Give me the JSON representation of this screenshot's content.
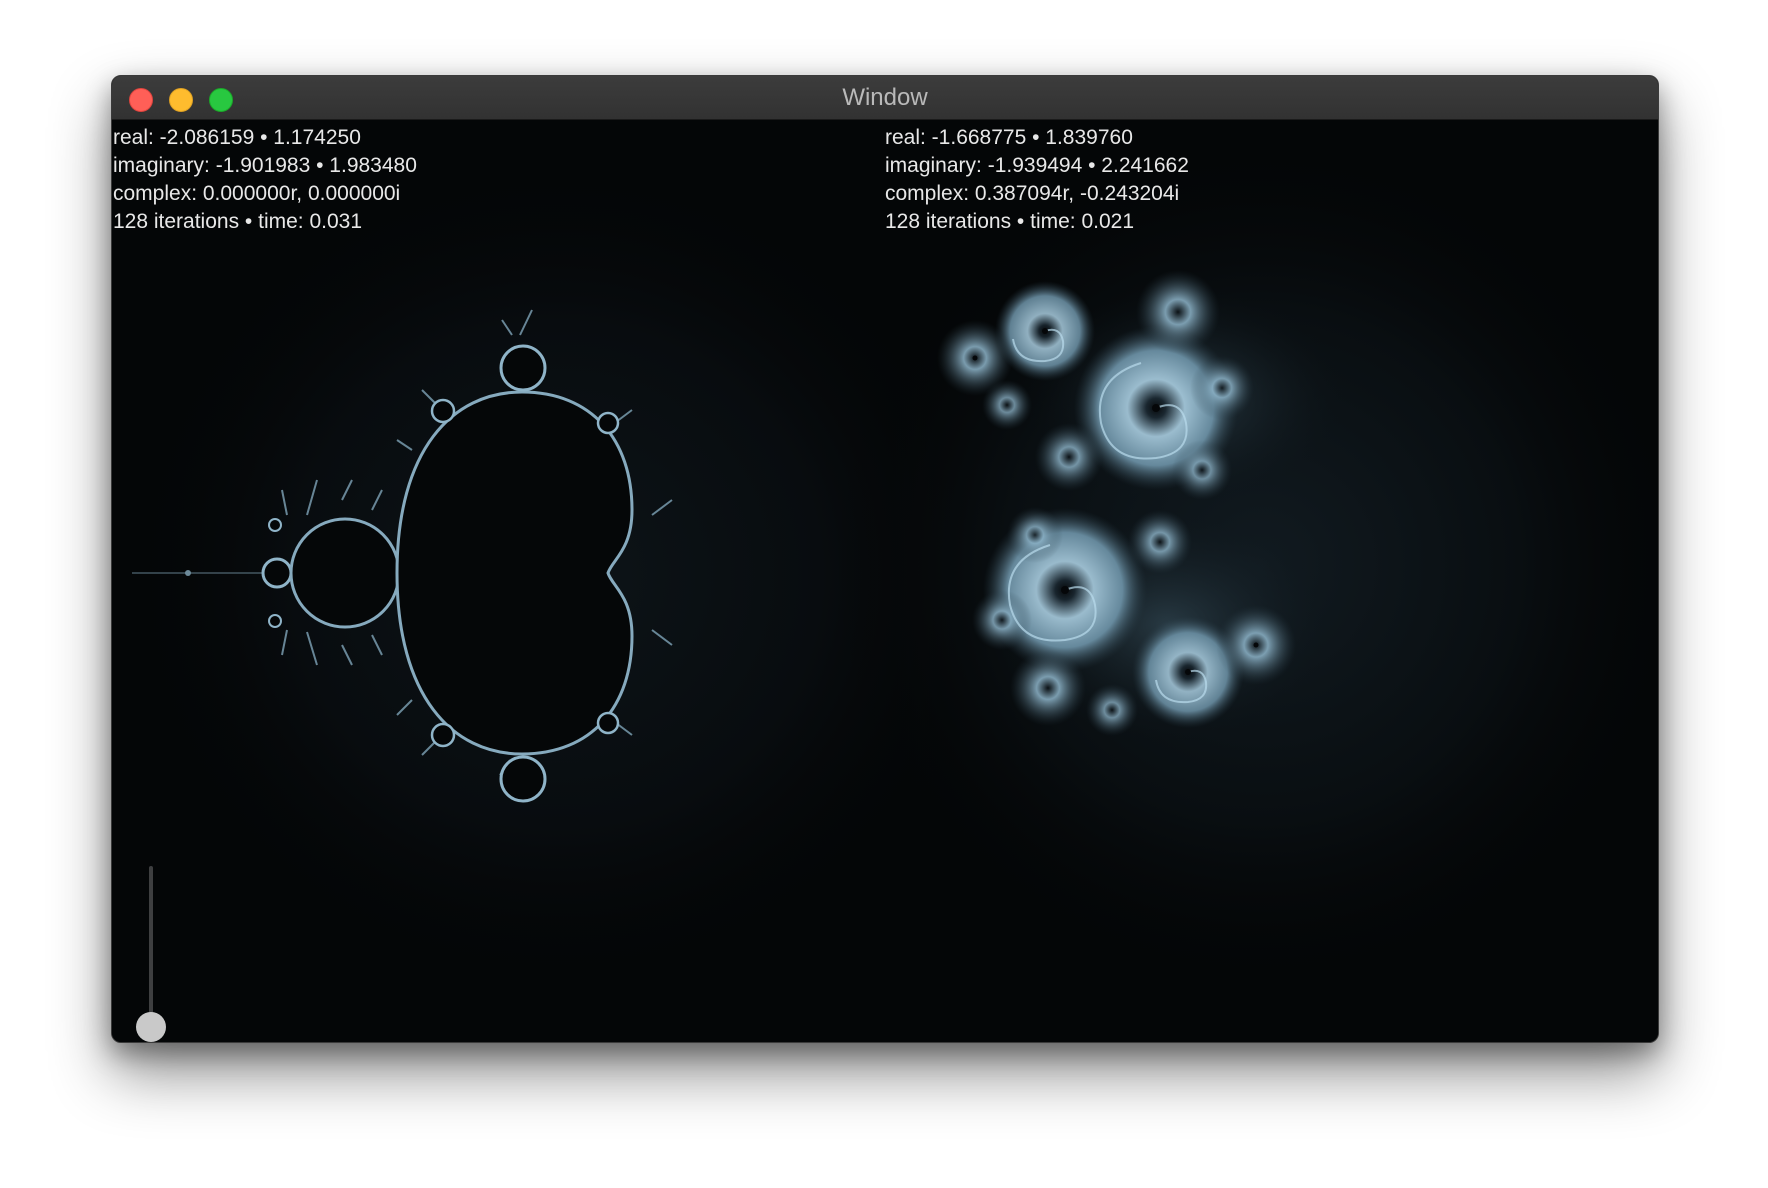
{
  "window": {
    "title": "Window"
  },
  "left_panel": {
    "real": "real: -2.086159 • 1.174250",
    "imaginary": "imaginary: -1.901983 • 1.983480",
    "complex": "complex: 0.000000r, 0.000000i",
    "stats": "128 iterations • time: 0.031",
    "fractal": "mandelbrot-set"
  },
  "right_panel": {
    "real": "real: -1.668775 • 1.839760",
    "imaginary": "imaginary: -1.939494 • 2.241662",
    "complex": "complex: 0.387094r, -0.243204i",
    "stats": "128 iterations • time: 0.021",
    "fractal": "julia-set"
  },
  "slider": {
    "value_fraction": 0.0
  },
  "colors": {
    "background": "#040607",
    "fractal_edge": "#9fc3d6",
    "titlebar": "#363636"
  }
}
